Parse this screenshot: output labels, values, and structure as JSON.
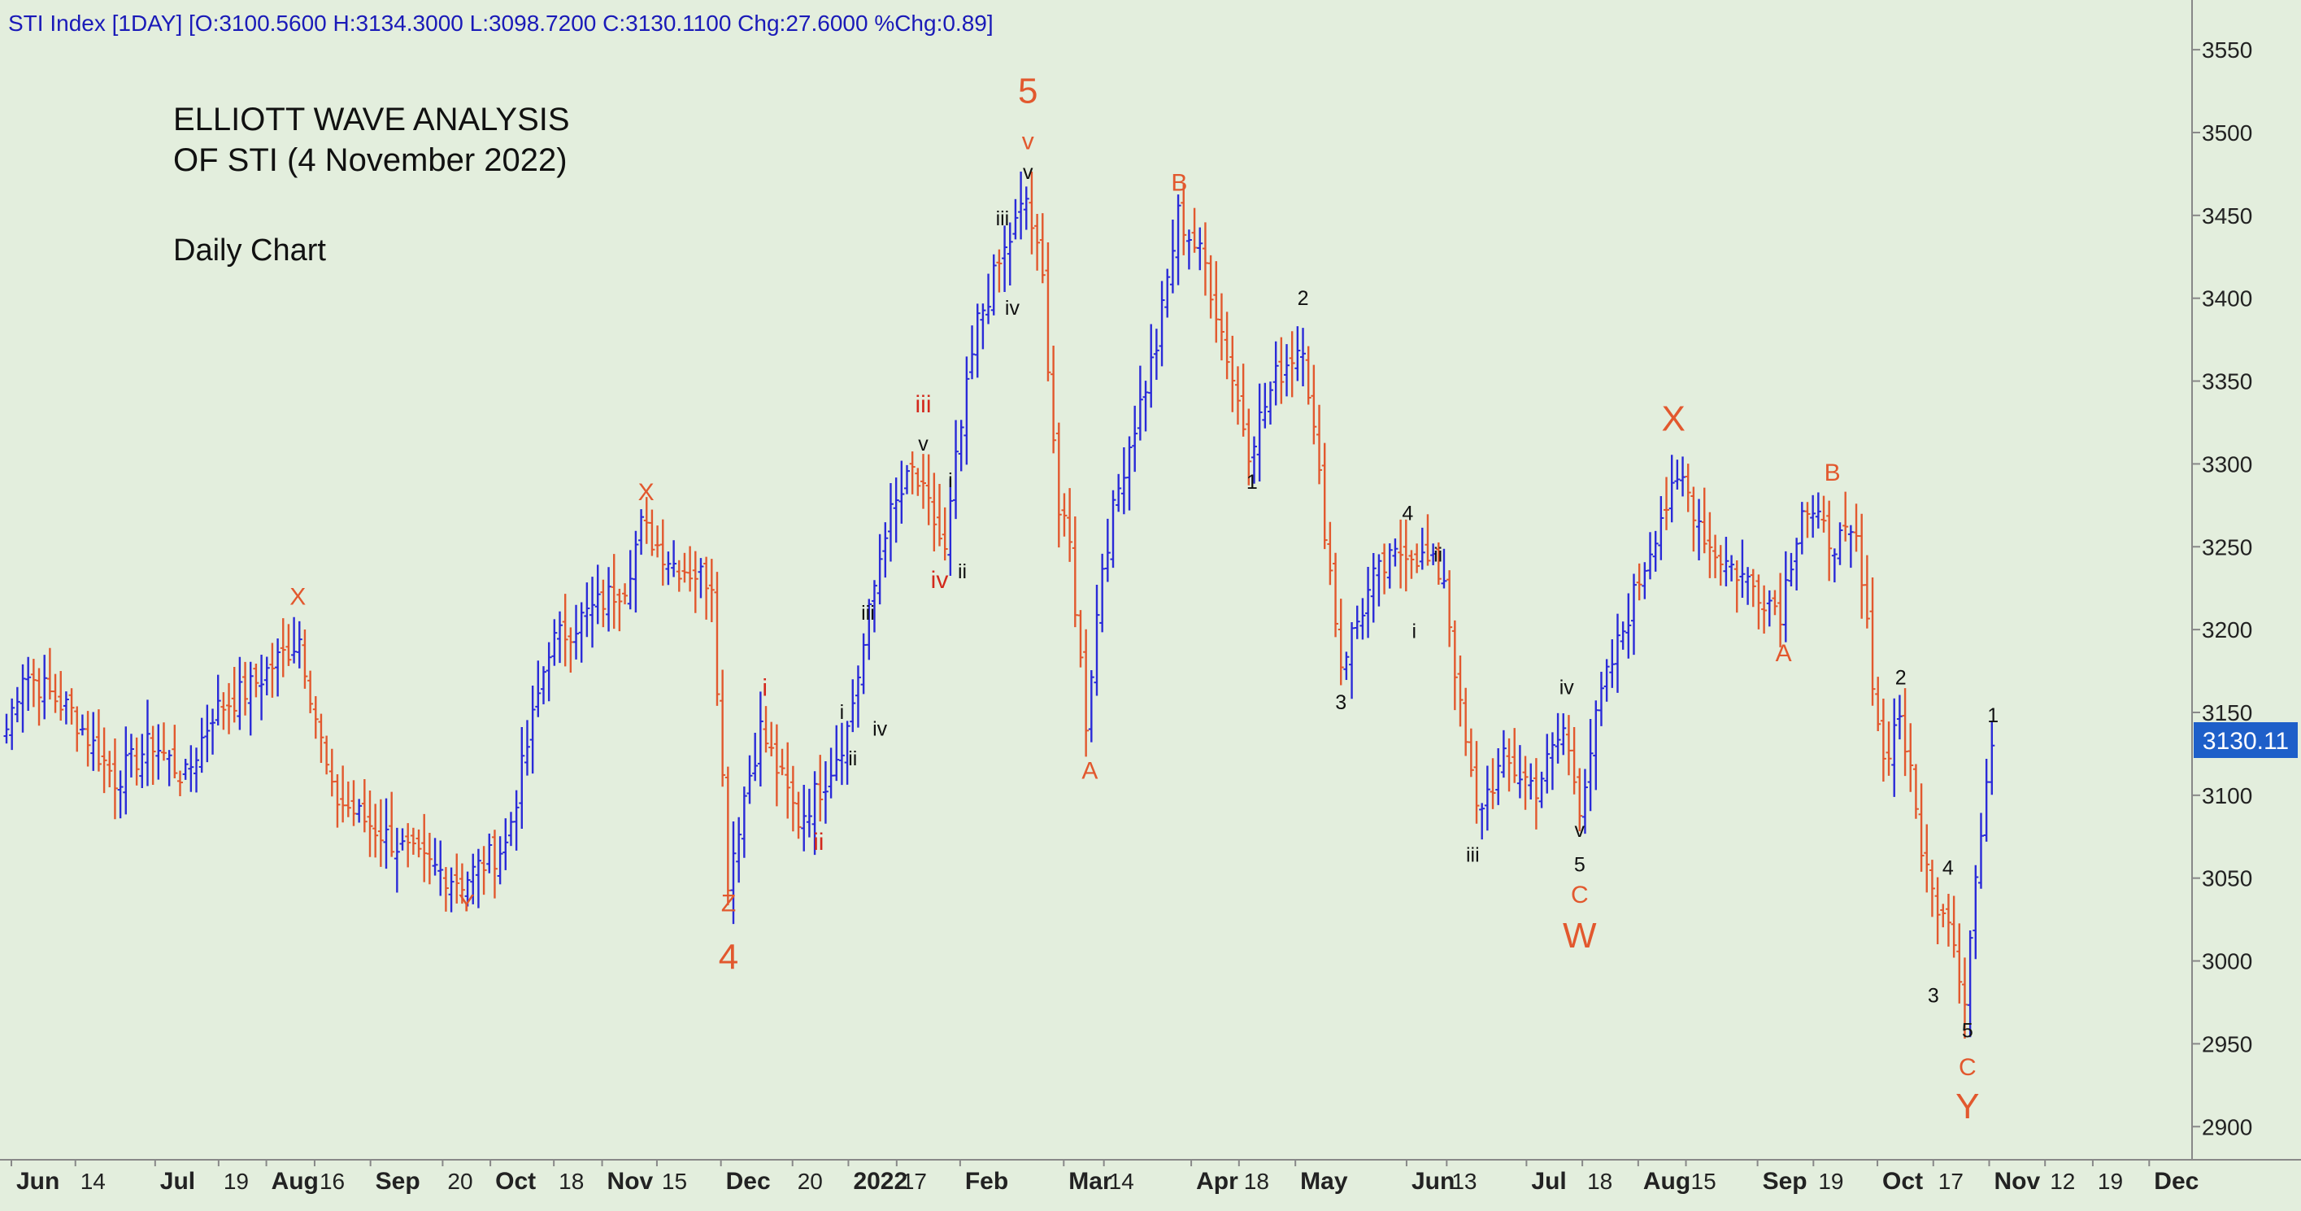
{
  "header": {
    "text": "STI Index [1DAY] [O:3100.5600 H:3134.3000 L:3098.7200 C:3130.1100 Chg:27.6000 %Chg:0.89]"
  },
  "annotation": {
    "title_line1": "ELLIOTT WAVE ANALYSIS",
    "title_line2": "OF STI (4 November 2022)",
    "subtitle": "Daily Chart"
  },
  "price_tag": "3130.11",
  "colors": {
    "background": "#e3eedd",
    "up_bar": "#2a2ad8",
    "down_bar": "#e2582e",
    "label_orange": "#e2582e",
    "label_red": "#d3281c",
    "label_black": "#111111",
    "header_text": "#1a1ab8",
    "price_tag_bg": "#1e5fc9"
  },
  "chart_data": {
    "type": "ohlc",
    "title": "STI Index [1DAY]",
    "ylim": [
      2880,
      3580
    ],
    "y_ticks": [
      3550,
      3500,
      3450,
      3400,
      3350,
      3300,
      3250,
      3200,
      3150,
      3100,
      3050,
      3000,
      2950,
      2900
    ],
    "x_ticks": [
      {
        "label": "Jun",
        "x": 0.9
      },
      {
        "label": "14",
        "x": 12.7
      },
      {
        "label": "Jul",
        "x": 27.4
      },
      {
        "label": "19",
        "x": 39.1
      },
      {
        "label": "Aug",
        "x": 47.9
      },
      {
        "label": "16",
        "x": 56.8
      },
      {
        "label": "Sep",
        "x": 67.1
      },
      {
        "label": "20",
        "x": 80.4
      },
      {
        "label": "Oct",
        "x": 89.2
      },
      {
        "label": "18",
        "x": 100.9
      },
      {
        "label": "Nov",
        "x": 109.8
      },
      {
        "label": "15",
        "x": 119.9
      },
      {
        "label": "Dec",
        "x": 131.7
      },
      {
        "label": "20",
        "x": 144.9
      },
      {
        "label": "2022",
        "x": 155.2
      },
      {
        "label": "17",
        "x": 164.1
      },
      {
        "label": "Feb",
        "x": 175.8
      },
      {
        "label": "Mar",
        "x": 194.9
      },
      {
        "label": "14",
        "x": 202.3
      },
      {
        "label": "Apr",
        "x": 218.4
      },
      {
        "label": "18",
        "x": 227.2
      },
      {
        "label": "May",
        "x": 237.6
      },
      {
        "label": "Jun",
        "x": 258.1
      },
      {
        "label": "13",
        "x": 265.5
      },
      {
        "label": "Jul",
        "x": 280.2
      },
      {
        "label": "18",
        "x": 290.5
      },
      {
        "label": "Aug",
        "x": 300.8
      },
      {
        "label": "15",
        "x": 309.6
      },
      {
        "label": "Sep",
        "x": 322.8
      },
      {
        "label": "19",
        "x": 333.1
      },
      {
        "label": "Oct",
        "x": 344.9
      },
      {
        "label": "17",
        "x": 355.2
      },
      {
        "label": "Nov",
        "x": 365.5
      },
      {
        "label": "12",
        "x": 375.8
      },
      {
        "label": "19",
        "x": 384.6
      },
      {
        "label": "Dec",
        "x": 395.0
      }
    ],
    "xlim": [
      0,
      402
    ],
    "wave_labels": [
      {
        "text": "X",
        "x": 53.7,
        "y": 3215,
        "color": "orange",
        "size": 30
      },
      {
        "text": "X",
        "x": 117.9,
        "y": 3278,
        "color": "orange",
        "size": 30
      },
      {
        "text": "Y",
        "x": 84.8,
        "y": 3030,
        "color": "orange",
        "size": 30
      },
      {
        "text": "Z",
        "x": 133.1,
        "y": 3030,
        "color": "orange",
        "size": 30
      },
      {
        "text": "4",
        "x": 133.1,
        "y": 2995,
        "color": "orange",
        "size": 44
      },
      {
        "text": "i",
        "x": 139.8,
        "y": 3160,
        "color": "red",
        "size": 30
      },
      {
        "text": "ii",
        "x": 149.7,
        "y": 3067,
        "color": "red",
        "size": 30
      },
      {
        "text": "i",
        "x": 154.0,
        "y": 3146,
        "color": "black",
        "size": 25
      },
      {
        "text": "ii",
        "x": 156.0,
        "y": 3118,
        "color": "black",
        "size": 25
      },
      {
        "text": "iii",
        "x": 158.8,
        "y": 3206,
        "color": "black",
        "size": 25
      },
      {
        "text": "iv",
        "x": 161.0,
        "y": 3136,
        "color": "black",
        "size": 25
      },
      {
        "text": "iii",
        "x": 169.0,
        "y": 3331,
        "color": "red",
        "size": 30
      },
      {
        "text": "v",
        "x": 169.0,
        "y": 3308,
        "color": "black",
        "size": 25
      },
      {
        "text": "i",
        "x": 174.0,
        "y": 3286,
        "color": "black",
        "size": 25
      },
      {
        "text": "iv",
        "x": 172.0,
        "y": 3225,
        "color": "red",
        "size": 30
      },
      {
        "text": "ii",
        "x": 176.2,
        "y": 3231,
        "color": "black",
        "size": 25
      },
      {
        "text": "iii",
        "x": 183.6,
        "y": 3444,
        "color": "black",
        "size": 25
      },
      {
        "text": "iv",
        "x": 185.4,
        "y": 3390,
        "color": "black",
        "size": 25
      },
      {
        "text": "5",
        "x": 188.3,
        "y": 3518,
        "color": "orange",
        "size": 44
      },
      {
        "text": "v",
        "x": 188.3,
        "y": 3490,
        "color": "orange",
        "size": 30
      },
      {
        "text": "v",
        "x": 188.3,
        "y": 3472,
        "color": "black",
        "size": 25
      },
      {
        "text": "A",
        "x": 199.7,
        "y": 3110,
        "color": "orange",
        "size": 30
      },
      {
        "text": "B",
        "x": 216.2,
        "y": 3465,
        "color": "orange",
        "size": 30
      },
      {
        "text": "2",
        "x": 239.0,
        "y": 3396,
        "color": "black",
        "size": 25
      },
      {
        "text": "1",
        "x": 229.6,
        "y": 3285,
        "color": "black",
        "size": 25
      },
      {
        "text": "4",
        "x": 258.3,
        "y": 3266,
        "color": "black",
        "size": 25
      },
      {
        "text": "ii",
        "x": 263.9,
        "y": 3241,
        "color": "black",
        "size": 25
      },
      {
        "text": "i",
        "x": 259.5,
        "y": 3195,
        "color": "black",
        "size": 25
      },
      {
        "text": "3",
        "x": 246.0,
        "y": 3152,
        "color": "black",
        "size": 25
      },
      {
        "text": "iii",
        "x": 270.3,
        "y": 3060,
        "color": "black",
        "size": 25
      },
      {
        "text": "iv",
        "x": 287.6,
        "y": 3161,
        "color": "black",
        "size": 25
      },
      {
        "text": "v",
        "x": 290.0,
        "y": 3075,
        "color": "black",
        "size": 25
      },
      {
        "text": "5",
        "x": 290.0,
        "y": 3054,
        "color": "black",
        "size": 25
      },
      {
        "text": "C",
        "x": 290.0,
        "y": 3035,
        "color": "orange",
        "size": 30
      },
      {
        "text": "W",
        "x": 290.0,
        "y": 3008,
        "color": "orange",
        "size": 44
      },
      {
        "text": "X",
        "x": 307.3,
        "y": 3320,
        "color": "orange",
        "size": 44
      },
      {
        "text": "A",
        "x": 327.6,
        "y": 3181,
        "color": "orange",
        "size": 30
      },
      {
        "text": "B",
        "x": 336.6,
        "y": 3290,
        "color": "orange",
        "size": 30
      },
      {
        "text": "2",
        "x": 349.2,
        "y": 3167,
        "color": "black",
        "size": 25
      },
      {
        "text": "1",
        "x": 366.2,
        "y": 3144,
        "color": "black",
        "size": 25
      },
      {
        "text": "4",
        "x": 357.9,
        "y": 3052,
        "color": "black",
        "size": 25
      },
      {
        "text": "3",
        "x": 355.2,
        "y": 2975,
        "color": "black",
        "size": 25
      },
      {
        "text": "5",
        "x": 361.5,
        "y": 2954,
        "color": "black",
        "size": 25
      },
      {
        "text": "C",
        "x": 361.5,
        "y": 2931,
        "color": "orange",
        "size": 30
      },
      {
        "text": "Y",
        "x": 361.5,
        "y": 2905,
        "color": "orange",
        "size": 44
      }
    ],
    "anchors": [
      [
        0,
        3140
      ],
      [
        3,
        3175
      ],
      [
        12,
        3150
      ],
      [
        20,
        3110
      ],
      [
        27,
        3132
      ],
      [
        33,
        3110
      ],
      [
        38,
        3150
      ],
      [
        45,
        3165
      ],
      [
        54,
        3195
      ],
      [
        60,
        3100
      ],
      [
        68,
        3080
      ],
      [
        76,
        3060
      ],
      [
        84,
        3048
      ],
      [
        92,
        3070
      ],
      [
        100,
        3190
      ],
      [
        108,
        3212
      ],
      [
        114,
        3228
      ],
      [
        117,
        3262
      ],
      [
        123,
        3240
      ],
      [
        130,
        3230
      ],
      [
        133,
        3050
      ],
      [
        136,
        3100
      ],
      [
        139,
        3140
      ],
      [
        146,
        3085
      ],
      [
        151,
        3110
      ],
      [
        155,
        3140
      ],
      [
        158,
        3190
      ],
      [
        162,
        3262
      ],
      [
        167,
        3295
      ],
      [
        171,
        3265
      ],
      [
        173,
        3245
      ],
      [
        175,
        3300
      ],
      [
        179,
        3385
      ],
      [
        183,
        3420
      ],
      [
        188,
        3460
      ],
      [
        191,
        3410
      ],
      [
        194,
        3270
      ],
      [
        196,
        3250
      ],
      [
        199,
        3145
      ],
      [
        202,
        3240
      ],
      [
        206,
        3300
      ],
      [
        212,
        3372
      ],
      [
        216,
        3450
      ],
      [
        221,
        3420
      ],
      [
        224,
        3380
      ],
      [
        229,
        3310
      ],
      [
        234,
        3352
      ],
      [
        239,
        3375
      ],
      [
        242,
        3290
      ],
      [
        246,
        3180
      ],
      [
        252,
        3230
      ],
      [
        258,
        3250
      ],
      [
        262,
        3240
      ],
      [
        265,
        3232
      ],
      [
        268,
        3150
      ],
      [
        271,
        3090
      ],
      [
        276,
        3120
      ],
      [
        282,
        3105
      ],
      [
        287,
        3140
      ],
      [
        290,
        3095
      ],
      [
        294,
        3160
      ],
      [
        300,
        3220
      ],
      [
        305,
        3270
      ],
      [
        309,
        3290
      ],
      [
        314,
        3250
      ],
      [
        320,
        3232
      ],
      [
        327,
        3212
      ],
      [
        331,
        3275
      ],
      [
        336,
        3255
      ],
      [
        341,
        3252
      ],
      [
        346,
        3120
      ],
      [
        349,
        3150
      ],
      [
        353,
        3070
      ],
      [
        355,
        3040
      ],
      [
        358,
        3030
      ],
      [
        361,
        2978
      ],
      [
        363,
        3050
      ],
      [
        365,
        3100
      ],
      [
        366,
        3130
      ]
    ]
  }
}
